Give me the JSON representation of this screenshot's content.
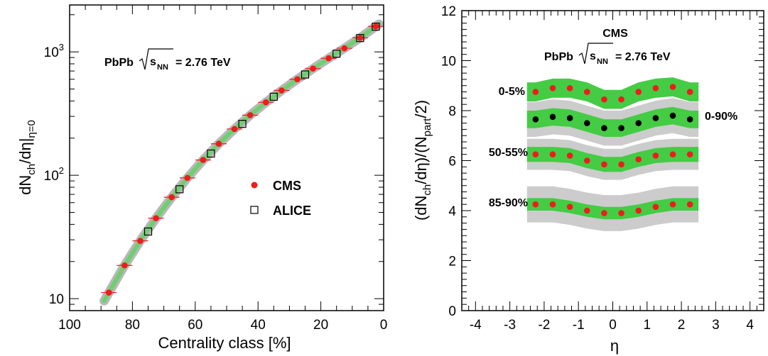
{
  "chart_data": [
    {
      "type": "scatter",
      "title": "",
      "annotation_prefix": "PbPb",
      "energy_symbol": "s",
      "energy_subscript": "NN",
      "energy_value": "= 2.76 TeV",
      "xlabel": "Centrality class [%]",
      "ylabel": {
        "text": "dN",
        "sub": "ch",
        "mid": "/dη|",
        "sub2": "η=0"
      },
      "xlim": [
        100,
        0
      ],
      "ylim": [
        8,
        2400
      ],
      "y_scale": "log",
      "x_ticks": [
        "100",
        "80",
        "60",
        "40",
        "20",
        "0"
      ],
      "x_tick_values": [
        100,
        80,
        60,
        40,
        20,
        0
      ],
      "y_ticks": [
        {
          "value": 10,
          "base": "10",
          "exp": ""
        },
        {
          "value": 100,
          "base": "10",
          "exp": "2"
        },
        {
          "value": 1000,
          "base": "10",
          "exp": "3"
        }
      ],
      "legend_position": "middle-right",
      "series": [
        {
          "name": "CMS",
          "marker": "filled-circle",
          "color": "#ee1c1c",
          "x": [
            87.5,
            82.5,
            77.5,
            72.5,
            67.5,
            62.5,
            57.5,
            52.5,
            47.5,
            42.5,
            37.5,
            32.5,
            27.5,
            22.5,
            17.5,
            12.5,
            7.5,
            2.5
          ],
          "y": [
            11.2,
            18.6,
            29.4,
            44.9,
            66.4,
            95.2,
            133,
            180,
            237,
            307,
            390,
            487,
            600,
            732,
            887,
            1070,
            1300,
            1610
          ]
        },
        {
          "name": "ALICE",
          "marker": "open-square",
          "color": "#000000",
          "x": [
            75,
            65,
            55,
            45,
            35,
            25,
            15,
            7.5,
            2.5
          ],
          "y": [
            35,
            77,
            150,
            261,
            433,
            656,
            966,
            1294,
            1601
          ]
        }
      ],
      "band_color": "#6fcf6f",
      "band_edge_color": "#b8b8b8"
    },
    {
      "type": "scatter",
      "title": "CMS",
      "annotation_prefix": "PbPb",
      "energy_symbol": "s",
      "energy_subscript": "NN",
      "energy_value": "= 2.76 TeV",
      "xlabel": "η",
      "ylabel": {
        "p1": "(dN",
        "s1": "ch",
        "p2": "/dη)/(N",
        "s2": "part",
        "p3": "/2)"
      },
      "xlim": [
        -4.4,
        4.4
      ],
      "ylim": [
        0,
        12
      ],
      "x_ticks": [
        -4,
        -3,
        -2,
        -1,
        0,
        1,
        2,
        3,
        4
      ],
      "y_ticks": [
        0,
        2,
        4,
        6,
        8,
        10,
        12
      ],
      "x": [
        -2.25,
        -1.75,
        -1.25,
        -0.75,
        -0.25,
        0.25,
        0.75,
        1.25,
        1.75,
        2.25
      ],
      "series": [
        {
          "name": "0-5%",
          "color": "#ee1c1c",
          "y": [
            8.75,
            8.9,
            8.9,
            8.75,
            8.45,
            8.45,
            8.75,
            8.9,
            8.95,
            8.75
          ],
          "green_half": 0.38,
          "gray_half": 0.38
        },
        {
          "name": "0-90%",
          "color": "#000000",
          "y": [
            7.65,
            7.75,
            7.7,
            7.5,
            7.3,
            7.3,
            7.5,
            7.7,
            7.8,
            7.65
          ],
          "green_half": 0.35,
          "gray_half": 0.7
        },
        {
          "name": "50-55%",
          "color": "#ee1c1c",
          "y": [
            6.25,
            6.25,
            6.2,
            6.0,
            5.85,
            5.85,
            6.05,
            6.2,
            6.25,
            6.25
          ],
          "green_half": 0.3,
          "gray_half": 0.62
        },
        {
          "name": "85-90%",
          "color": "#ee1c1c",
          "y": [
            4.25,
            4.25,
            4.15,
            4.0,
            3.9,
            3.9,
            4.0,
            4.15,
            4.25,
            4.25
          ],
          "green_half": 0.25,
          "gray_half": 0.72
        }
      ],
      "band_color": "#44cc44",
      "gray_color": "#cccccc"
    }
  ]
}
